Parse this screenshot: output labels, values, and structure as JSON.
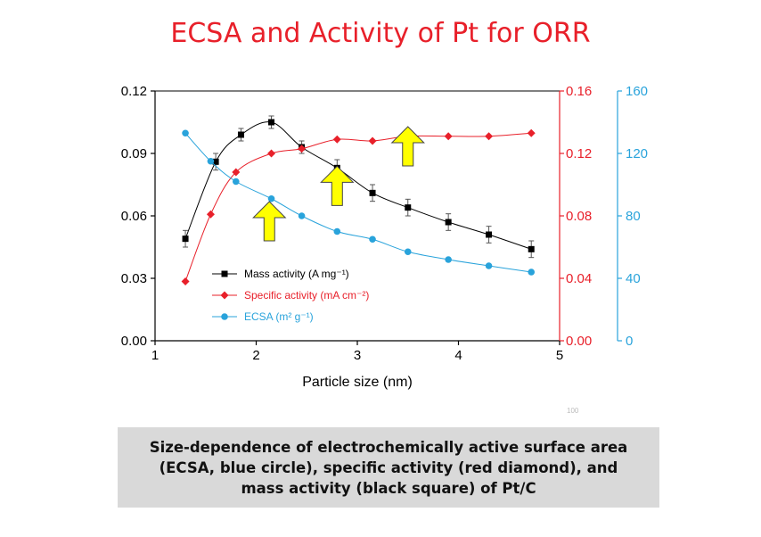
{
  "slide": {
    "title": "ECSA and Activity of Pt for ORR",
    "caption": "Size-dependence of electrochemically active surface area (ECSA, blue circle), specific activity (red diamond), and mass activity (black square) of Pt/C",
    "slide_number": "100"
  },
  "chart_data": {
    "type": "scatter",
    "title": "",
    "xlabel": "Particle size (nm)",
    "xlim": [
      1,
      5
    ],
    "x_ticks": [
      "1",
      "2",
      "3",
      "4",
      "5"
    ],
    "axes": {
      "left": {
        "range": [
          0,
          0.12
        ],
        "ticks": [
          "0.00",
          "0.03",
          "0.06",
          "0.09",
          "0.12"
        ],
        "color": "#000000"
      },
      "right1": {
        "range": [
          0,
          0.16
        ],
        "ticks": [
          "0.00",
          "0.04",
          "0.08",
          "0.12",
          "0.16"
        ],
        "color": "#e8202a"
      },
      "right2": {
        "range": [
          0,
          160
        ],
        "ticks": [
          "0",
          "40",
          "80",
          "120",
          "160"
        ],
        "color": "#29a3db"
      }
    },
    "series": [
      {
        "name": "Mass activity (A mg⁻¹)",
        "axis": "left",
        "marker": "square",
        "color": "#000000",
        "x": [
          1.3,
          1.6,
          1.85,
          2.15,
          2.45,
          2.8,
          3.15,
          3.5,
          3.9,
          4.3,
          4.72
        ],
        "y": [
          0.049,
          0.086,
          0.099,
          0.105,
          0.093,
          0.083,
          0.071,
          0.064,
          0.057,
          0.051,
          0.044
        ],
        "err": [
          0.004,
          0.004,
          0.003,
          0.003,
          0.003,
          0.004,
          0.004,
          0.004,
          0.004,
          0.004,
          0.004
        ]
      },
      {
        "name": "Specific activity (mA cm⁻²)",
        "axis": "right1",
        "marker": "diamond",
        "color": "#e8202a",
        "x": [
          1.3,
          1.55,
          1.8,
          2.15,
          2.45,
          2.8,
          3.15,
          3.5,
          3.9,
          4.3,
          4.72
        ],
        "y": [
          0.038,
          0.081,
          0.108,
          0.12,
          0.123,
          0.129,
          0.128,
          0.131,
          0.131,
          0.131,
          0.133
        ]
      },
      {
        "name": "ECSA (m² g⁻¹)",
        "axis": "right2",
        "marker": "circle",
        "color": "#29a3db",
        "x": [
          1.3,
          1.55,
          1.8,
          2.15,
          2.45,
          2.8,
          3.15,
          3.5,
          3.9,
          4.3,
          4.72
        ],
        "y": [
          133,
          115,
          102,
          91,
          80,
          70,
          65,
          57,
          52,
          48,
          44
        ]
      }
    ],
    "annotations": [
      {
        "type": "arrow",
        "direction": "up",
        "color": "#ffff00",
        "x": 2.13,
        "y_left": 0.048
      },
      {
        "type": "arrow",
        "direction": "up",
        "color": "#ffff00",
        "x": 2.8,
        "y_left": 0.065
      },
      {
        "type": "arrow",
        "direction": "up",
        "color": "#ffff00",
        "x": 3.5,
        "y_left": 0.084
      }
    ],
    "legend_position": "lower-left"
  }
}
